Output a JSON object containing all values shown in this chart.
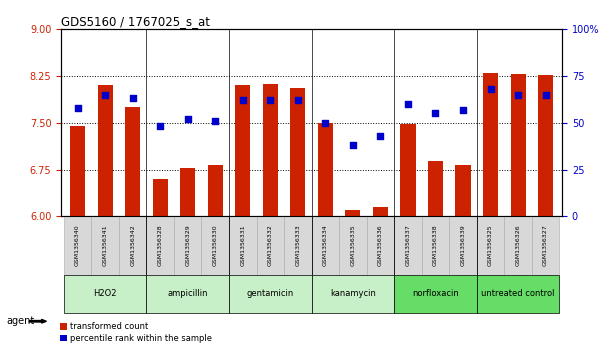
{
  "title": "GDS5160 / 1767025_s_at",
  "samples": [
    "GSM1356340",
    "GSM1356341",
    "GSM1356342",
    "GSM1356328",
    "GSM1356329",
    "GSM1356330",
    "GSM1356331",
    "GSM1356332",
    "GSM1356333",
    "GSM1356334",
    "GSM1356335",
    "GSM1356336",
    "GSM1356337",
    "GSM1356338",
    "GSM1356339",
    "GSM1356325",
    "GSM1356326",
    "GSM1356327"
  ],
  "bar_values": [
    7.45,
    8.1,
    7.75,
    6.6,
    6.78,
    6.82,
    8.1,
    8.12,
    8.05,
    7.5,
    6.1,
    6.15,
    7.48,
    6.88,
    6.83,
    8.3,
    8.28,
    8.26
  ],
  "dot_values": [
    58,
    65,
    63,
    48,
    52,
    51,
    62,
    62,
    62,
    50,
    38,
    43,
    60,
    55,
    57,
    68,
    65,
    65
  ],
  "groups": [
    {
      "label": "H2O2",
      "start": 0,
      "end": 3,
      "color": "#c8f0c8"
    },
    {
      "label": "ampicillin",
      "start": 3,
      "end": 6,
      "color": "#c8f0c8"
    },
    {
      "label": "gentamicin",
      "start": 6,
      "end": 9,
      "color": "#c8f0c8"
    },
    {
      "label": "kanamycin",
      "start": 9,
      "end": 12,
      "color": "#c8f0c8"
    },
    {
      "label": "norfloxacin",
      "start": 12,
      "end": 15,
      "color": "#66dd66"
    },
    {
      "label": "untreated control",
      "start": 15,
      "end": 18,
      "color": "#66dd66"
    }
  ],
  "bar_color": "#cc2200",
  "dot_color": "#0000cc",
  "ylim_left": [
    6,
    9
  ],
  "ylim_right": [
    0,
    100
  ],
  "yticks_left": [
    6,
    6.75,
    7.5,
    8.25,
    9
  ],
  "yticks_right": [
    0,
    25,
    50,
    75,
    100
  ],
  "ytick_labels_right": [
    "0",
    "25",
    "50",
    "75",
    "100%"
  ],
  "hlines": [
    6.75,
    7.5,
    8.25
  ],
  "agent_label": "agent",
  "legend_bar": "transformed count",
  "legend_dot": "percentile rank within the sample",
  "bar_width": 0.55,
  "sample_bg": "#d8d8d8",
  "plot_bg": "#ffffff"
}
